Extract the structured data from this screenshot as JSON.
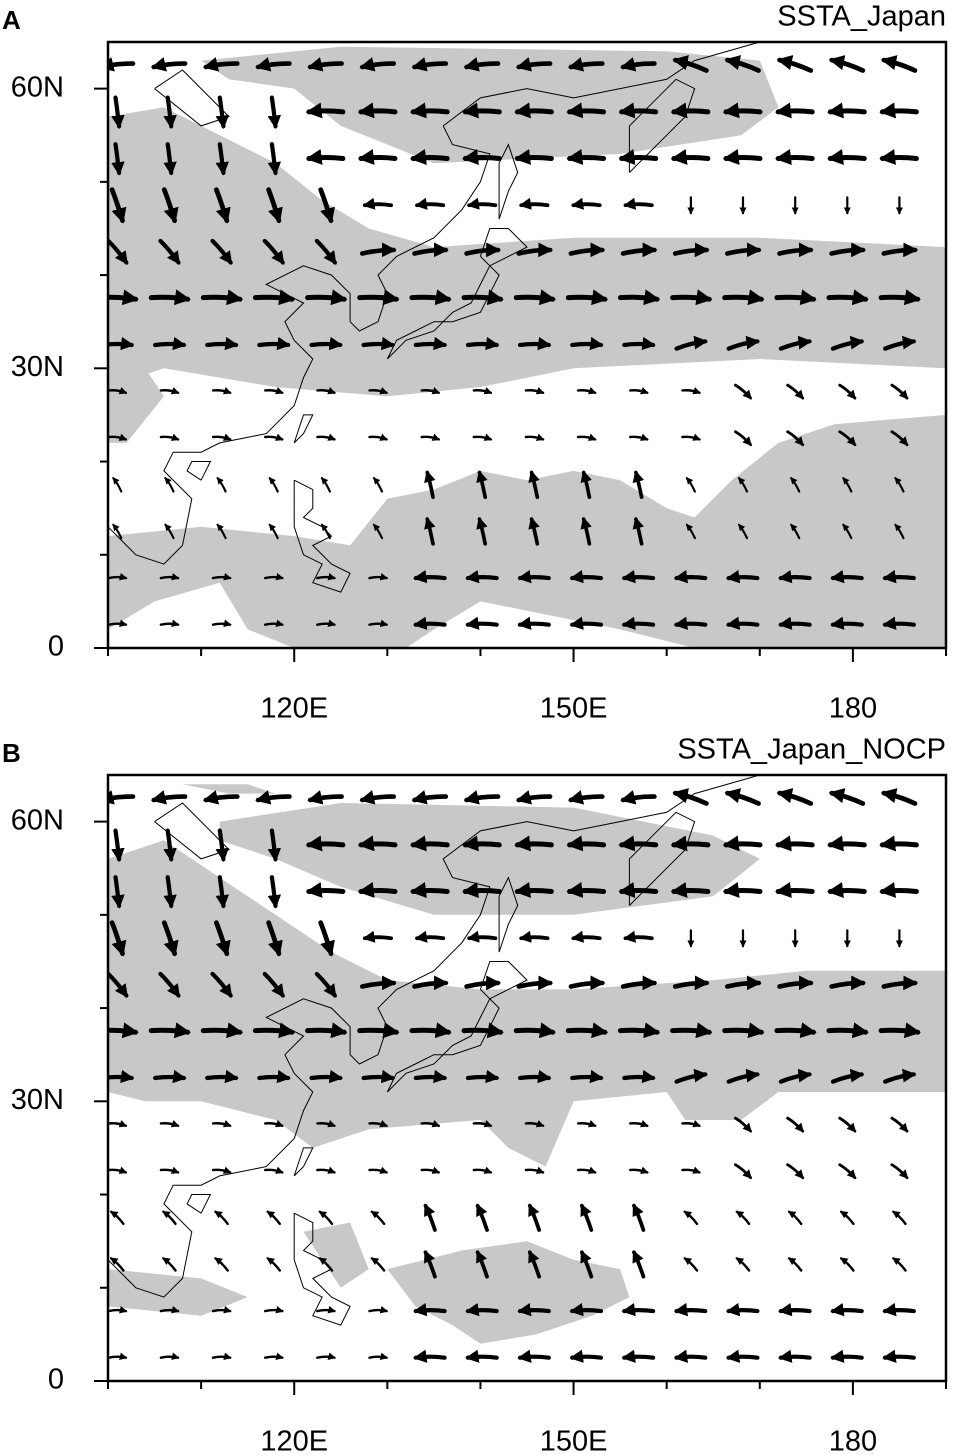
{
  "panels": [
    {
      "label": "A",
      "title": "SSTA_Japan",
      "xlim": [
        100,
        190
      ],
      "ylim": [
        0,
        65
      ],
      "xticks": [
        {
          "value": 120,
          "label": "120E"
        },
        {
          "value": 150,
          "label": "150E"
        },
        {
          "value": 180,
          "label": "180"
        }
      ],
      "yticks": [
        0,
        {
          "value": 30,
          "label": "30N"
        },
        {
          "value": 60,
          "label": "60N"
        }
      ],
      "xminorticks": [
        100,
        110,
        130,
        140,
        160,
        170,
        190
      ],
      "yminorticks": [
        10,
        20,
        40,
        50
      ]
    },
    {
      "label": "B",
      "title": "SSTA_Japan_NOCP",
      "xlim": [
        100,
        190
      ],
      "ylim": [
        0,
        65
      ],
      "xticks": [
        {
          "value": 120,
          "label": "120E"
        },
        {
          "value": 150,
          "label": "150E"
        },
        {
          "value": 180,
          "label": "180"
        }
      ],
      "yticks": [
        0,
        {
          "value": 30,
          "label": "30N"
        },
        {
          "value": 60,
          "label": "60N"
        }
      ],
      "xminorticks": [
        100,
        110,
        130,
        140,
        160,
        170,
        190
      ],
      "yminorticks": [
        10,
        20,
        40,
        50
      ]
    }
  ]
}
